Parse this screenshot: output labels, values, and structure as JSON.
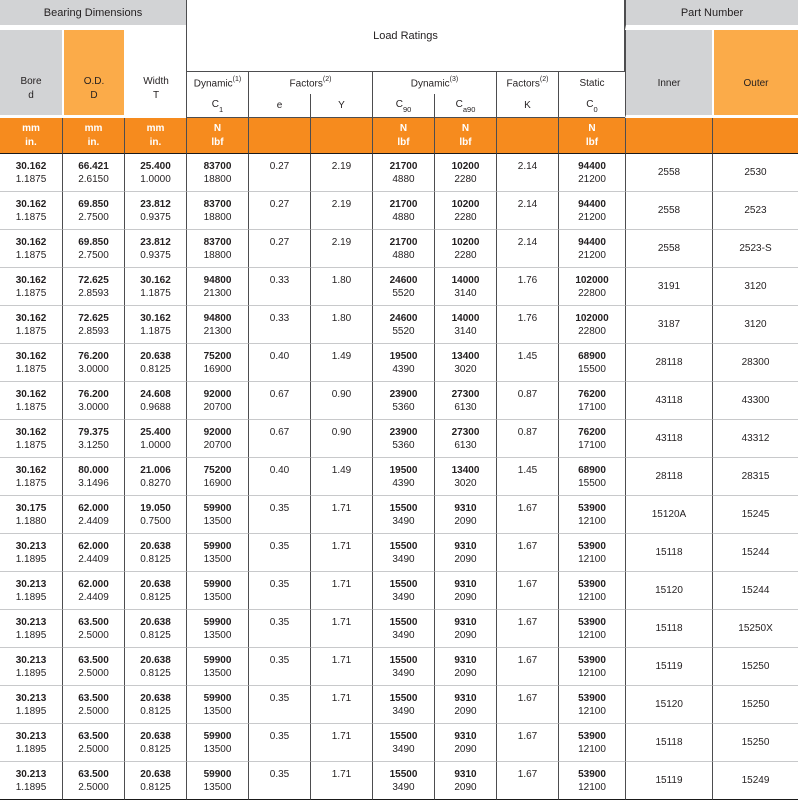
{
  "header": {
    "bearing_dimensions": "Bearing Dimensions",
    "load_ratings": "Load Ratings",
    "part_number": "Part Number"
  },
  "columns": {
    "bore": {
      "line1": "Bore",
      "line2": "d"
    },
    "od": {
      "line1": "O.D.",
      "line2": "D"
    },
    "width": {
      "line1": "Width",
      "line2": "T"
    },
    "dynamic1": {
      "title": "Dynamic",
      "sup": "(1)"
    },
    "factors_ey": {
      "title": "Factors",
      "sup": "(2)"
    },
    "dynamic3": {
      "title": "Dynamic",
      "sup": "(3)"
    },
    "factors_k": {
      "title": "Factors",
      "sup": "(2)"
    },
    "static_col": {
      "title": "Static"
    },
    "c1": {
      "sym": "C",
      "sub": "1"
    },
    "e": {
      "sym": "e"
    },
    "y": {
      "sym": "Y"
    },
    "c90": {
      "sym": "C",
      "sub": "90"
    },
    "ca90": {
      "sym": "C",
      "sub": "a90"
    },
    "k": {
      "sym": "K"
    },
    "c0": {
      "sym": "C",
      "sub": "0"
    },
    "inner": {
      "label": "Inner"
    },
    "outer": {
      "label": "Outer"
    }
  },
  "units": {
    "mm": "mm",
    "in": "in.",
    "n": "N",
    "lbf": "lbf"
  },
  "colors": {
    "header_gray": "#d2d3d5",
    "orange_light": "#fbab49",
    "orange_strong": "#f68b1e",
    "line_dark": "#4d4d4f",
    "line_light": "#c8c9cb",
    "text": "#231f20"
  },
  "table": {
    "column_keys": [
      "bore",
      "od",
      "width",
      "c1",
      "e",
      "y",
      "c90",
      "ca90",
      "k",
      "c0",
      "inner",
      "outer"
    ],
    "rows": [
      [
        [
          "30.162",
          "1.1875"
        ],
        [
          "66.421",
          "2.6150"
        ],
        [
          "25.400",
          "1.0000"
        ],
        [
          "83700",
          "18800"
        ],
        [
          "0.27"
        ],
        [
          "2.19"
        ],
        [
          "21700",
          "4880"
        ],
        [
          "10200",
          "2280"
        ],
        [
          "2.14"
        ],
        [
          "94400",
          "21200"
        ],
        [
          "2558"
        ],
        [
          "2530"
        ]
      ],
      [
        [
          "30.162",
          "1.1875"
        ],
        [
          "69.850",
          "2.7500"
        ],
        [
          "23.812",
          "0.9375"
        ],
        [
          "83700",
          "18800"
        ],
        [
          "0.27"
        ],
        [
          "2.19"
        ],
        [
          "21700",
          "4880"
        ],
        [
          "10200",
          "2280"
        ],
        [
          "2.14"
        ],
        [
          "94400",
          "21200"
        ],
        [
          "2558"
        ],
        [
          "2523"
        ]
      ],
      [
        [
          "30.162",
          "1.1875"
        ],
        [
          "69.850",
          "2.7500"
        ],
        [
          "23.812",
          "0.9375"
        ],
        [
          "83700",
          "18800"
        ],
        [
          "0.27"
        ],
        [
          "2.19"
        ],
        [
          "21700",
          "4880"
        ],
        [
          "10200",
          "2280"
        ],
        [
          "2.14"
        ],
        [
          "94400",
          "21200"
        ],
        [
          "2558"
        ],
        [
          "2523-S"
        ]
      ],
      [
        [
          "30.162",
          "1.1875"
        ],
        [
          "72.625",
          "2.8593"
        ],
        [
          "30.162",
          "1.1875"
        ],
        [
          "94800",
          "21300"
        ],
        [
          "0.33"
        ],
        [
          "1.80"
        ],
        [
          "24600",
          "5520"
        ],
        [
          "14000",
          "3140"
        ],
        [
          "1.76"
        ],
        [
          "102000",
          "22800"
        ],
        [
          "3191"
        ],
        [
          "3120"
        ]
      ],
      [
        [
          "30.162",
          "1.1875"
        ],
        [
          "72.625",
          "2.8593"
        ],
        [
          "30.162",
          "1.1875"
        ],
        [
          "94800",
          "21300"
        ],
        [
          "0.33"
        ],
        [
          "1.80"
        ],
        [
          "24600",
          "5520"
        ],
        [
          "14000",
          "3140"
        ],
        [
          "1.76"
        ],
        [
          "102000",
          "22800"
        ],
        [
          "3187"
        ],
        [
          "3120"
        ]
      ],
      [
        [
          "30.162",
          "1.1875"
        ],
        [
          "76.200",
          "3.0000"
        ],
        [
          "20.638",
          "0.8125"
        ],
        [
          "75200",
          "16900"
        ],
        [
          "0.40"
        ],
        [
          "1.49"
        ],
        [
          "19500",
          "4390"
        ],
        [
          "13400",
          "3020"
        ],
        [
          "1.45"
        ],
        [
          "68900",
          "15500"
        ],
        [
          "28118"
        ],
        [
          "28300"
        ]
      ],
      [
        [
          "30.162",
          "1.1875"
        ],
        [
          "76.200",
          "3.0000"
        ],
        [
          "24.608",
          "0.9688"
        ],
        [
          "92000",
          "20700"
        ],
        [
          "0.67"
        ],
        [
          "0.90"
        ],
        [
          "23900",
          "5360"
        ],
        [
          "27300",
          "6130"
        ],
        [
          "0.87"
        ],
        [
          "76200",
          "17100"
        ],
        [
          "43118"
        ],
        [
          "43300"
        ]
      ],
      [
        [
          "30.162",
          "1.1875"
        ],
        [
          "79.375",
          "3.1250"
        ],
        [
          "25.400",
          "1.0000"
        ],
        [
          "92000",
          "20700"
        ],
        [
          "0.67"
        ],
        [
          "0.90"
        ],
        [
          "23900",
          "5360"
        ],
        [
          "27300",
          "6130"
        ],
        [
          "0.87"
        ],
        [
          "76200",
          "17100"
        ],
        [
          "43118"
        ],
        [
          "43312"
        ]
      ],
      [
        [
          "30.162",
          "1.1875"
        ],
        [
          "80.000",
          "3.1496"
        ],
        [
          "21.006",
          "0.8270"
        ],
        [
          "75200",
          "16900"
        ],
        [
          "0.40"
        ],
        [
          "1.49"
        ],
        [
          "19500",
          "4390"
        ],
        [
          "13400",
          "3020"
        ],
        [
          "1.45"
        ],
        [
          "68900",
          "15500"
        ],
        [
          "28118"
        ],
        [
          "28315"
        ]
      ],
      [
        [
          "30.175",
          "1.1880"
        ],
        [
          "62.000",
          "2.4409"
        ],
        [
          "19.050",
          "0.7500"
        ],
        [
          "59900",
          "13500"
        ],
        [
          "0.35"
        ],
        [
          "1.71"
        ],
        [
          "15500",
          "3490"
        ],
        [
          "9310",
          "2090"
        ],
        [
          "1.67"
        ],
        [
          "53900",
          "12100"
        ],
        [
          "15120A"
        ],
        [
          "15245"
        ]
      ],
      [
        [
          "30.213",
          "1.1895"
        ],
        [
          "62.000",
          "2.4409"
        ],
        [
          "20.638",
          "0.8125"
        ],
        [
          "59900",
          "13500"
        ],
        [
          "0.35"
        ],
        [
          "1.71"
        ],
        [
          "15500",
          "3490"
        ],
        [
          "9310",
          "2090"
        ],
        [
          "1.67"
        ],
        [
          "53900",
          "12100"
        ],
        [
          "15118"
        ],
        [
          "15244"
        ]
      ],
      [
        [
          "30.213",
          "1.1895"
        ],
        [
          "62.000",
          "2.4409"
        ],
        [
          "20.638",
          "0.8125"
        ],
        [
          "59900",
          "13500"
        ],
        [
          "0.35"
        ],
        [
          "1.71"
        ],
        [
          "15500",
          "3490"
        ],
        [
          "9310",
          "2090"
        ],
        [
          "1.67"
        ],
        [
          "53900",
          "12100"
        ],
        [
          "15120"
        ],
        [
          "15244"
        ]
      ],
      [
        [
          "30.213",
          "1.1895"
        ],
        [
          "63.500",
          "2.5000"
        ],
        [
          "20.638",
          "0.8125"
        ],
        [
          "59900",
          "13500"
        ],
        [
          "0.35"
        ],
        [
          "1.71"
        ],
        [
          "15500",
          "3490"
        ],
        [
          "9310",
          "2090"
        ],
        [
          "1.67"
        ],
        [
          "53900",
          "12100"
        ],
        [
          "15118"
        ],
        [
          "15250X"
        ]
      ],
      [
        [
          "30.213",
          "1.1895"
        ],
        [
          "63.500",
          "2.5000"
        ],
        [
          "20.638",
          "0.8125"
        ],
        [
          "59900",
          "13500"
        ],
        [
          "0.35"
        ],
        [
          "1.71"
        ],
        [
          "15500",
          "3490"
        ],
        [
          "9310",
          "2090"
        ],
        [
          "1.67"
        ],
        [
          "53900",
          "12100"
        ],
        [
          "15119"
        ],
        [
          "15250"
        ]
      ],
      [
        [
          "30.213",
          "1.1895"
        ],
        [
          "63.500",
          "2.5000"
        ],
        [
          "20.638",
          "0.8125"
        ],
        [
          "59900",
          "13500"
        ],
        [
          "0.35"
        ],
        [
          "1.71"
        ],
        [
          "15500",
          "3490"
        ],
        [
          "9310",
          "2090"
        ],
        [
          "1.67"
        ],
        [
          "53900",
          "12100"
        ],
        [
          "15120"
        ],
        [
          "15250"
        ]
      ],
      [
        [
          "30.213",
          "1.1895"
        ],
        [
          "63.500",
          "2.5000"
        ],
        [
          "20.638",
          "0.8125"
        ],
        [
          "59900",
          "13500"
        ],
        [
          "0.35"
        ],
        [
          "1.71"
        ],
        [
          "15500",
          "3490"
        ],
        [
          "9310",
          "2090"
        ],
        [
          "1.67"
        ],
        [
          "53900",
          "12100"
        ],
        [
          "15118"
        ],
        [
          "15250"
        ]
      ],
      [
        [
          "30.213",
          "1.1895"
        ],
        [
          "63.500",
          "2.5000"
        ],
        [
          "20.638",
          "0.8125"
        ],
        [
          "59900",
          "13500"
        ],
        [
          "0.35"
        ],
        [
          "1.71"
        ],
        [
          "15500",
          "3490"
        ],
        [
          "9310",
          "2090"
        ],
        [
          "1.67"
        ],
        [
          "53900",
          "12100"
        ],
        [
          "15119"
        ],
        [
          "15249"
        ]
      ]
    ]
  }
}
